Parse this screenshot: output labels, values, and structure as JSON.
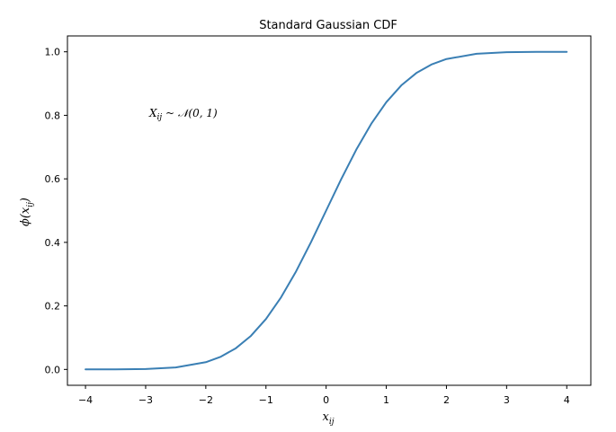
{
  "chart_data": {
    "type": "line",
    "title": "Standard Gaussian CDF",
    "xlabel": "x_ij",
    "ylabel": "φ(x_ij)",
    "xlim": [
      -4.3,
      4.4
    ],
    "ylim": [
      -0.05,
      1.05
    ],
    "x_ticks": [
      -4,
      -3,
      -2,
      -1,
      0,
      1,
      2,
      3,
      4
    ],
    "x_tick_labels": [
      "−4",
      "−3",
      "−2",
      "−1",
      "0",
      "1",
      "2",
      "3",
      "4"
    ],
    "y_ticks": [
      0.0,
      0.2,
      0.4,
      0.6,
      0.8,
      1.0
    ],
    "y_tick_labels": [
      "0.0",
      "0.2",
      "0.4",
      "0.6",
      "0.8",
      "1.0"
    ],
    "grid": false,
    "annotation": {
      "text": "X_ij ~ 𝒩(0, 1)",
      "x": -3.0,
      "y": 0.8
    },
    "series": [
      {
        "color": "#3a7fb4",
        "x": [
          -4.0,
          -3.5,
          -3.0,
          -2.5,
          -2.0,
          -1.75,
          -1.5,
          -1.25,
          -1.0,
          -0.75,
          -0.5,
          -0.25,
          0.0,
          0.25,
          0.5,
          0.75,
          1.0,
          1.25,
          1.5,
          1.75,
          2.0,
          2.5,
          3.0,
          3.5,
          4.0
        ],
        "y": [
          3e-05,
          0.0002,
          0.0013,
          0.0062,
          0.0228,
          0.0401,
          0.0668,
          0.1056,
          0.1587,
          0.2266,
          0.3085,
          0.4013,
          0.5,
          0.5987,
          0.6915,
          0.7734,
          0.8413,
          0.8944,
          0.9332,
          0.9599,
          0.9772,
          0.9938,
          0.9987,
          0.9998,
          0.99997
        ]
      }
    ]
  }
}
